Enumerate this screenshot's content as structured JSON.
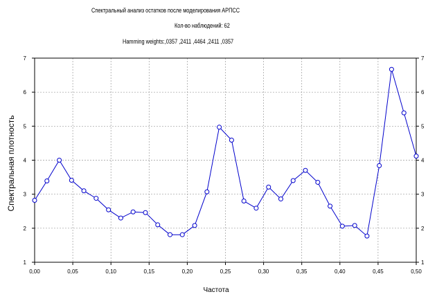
{
  "header": {
    "title": "Спектральный анализ остатков после моделирования АРПСС",
    "subtitle": "Кол-во наблюдений: 62",
    "weights": "Hamming weights:,0357 ,2411 ,4464 ,2411 ,0357"
  },
  "chart_data": {
    "type": "line",
    "title": "Спектральный анализ остатков после моделирования АРПСС",
    "xlabel": "Частота",
    "ylabel": "Спектральная плотность",
    "xlim": [
      0,
      0.5
    ],
    "ylim": [
      1,
      7
    ],
    "x_ticks": [
      "0,00",
      "0,05",
      "0,10",
      "0,15",
      "0,20",
      "0,25",
      "0,30",
      "0,35",
      "0,40",
      "0,45",
      "0,50"
    ],
    "y_ticks": [
      "1",
      "2",
      "3",
      "4",
      "5",
      "6",
      "7"
    ],
    "grid": true,
    "series_color": "#0000cc",
    "x": [
      0.0,
      0.0161,
      0.0323,
      0.0484,
      0.0645,
      0.0806,
      0.0968,
      0.1129,
      0.129,
      0.1452,
      0.1613,
      0.1774,
      0.1935,
      0.2097,
      0.2258,
      0.2419,
      0.2581,
      0.2742,
      0.2903,
      0.3065,
      0.3226,
      0.3387,
      0.3548,
      0.371,
      0.3871,
      0.4032,
      0.4194,
      0.4355,
      0.4516,
      0.4677,
      0.4839,
      0.5
    ],
    "y": [
      2.82,
      3.39,
      4.0,
      3.41,
      3.1,
      2.88,
      2.54,
      2.3,
      2.48,
      2.46,
      2.1,
      1.81,
      1.81,
      2.08,
      3.07,
      4.97,
      4.59,
      2.8,
      2.59,
      3.21,
      2.86,
      3.4,
      3.7,
      3.35,
      2.65,
      2.06,
      2.08,
      1.77,
      3.84,
      6.67,
      5.39,
      4.12
    ]
  }
}
